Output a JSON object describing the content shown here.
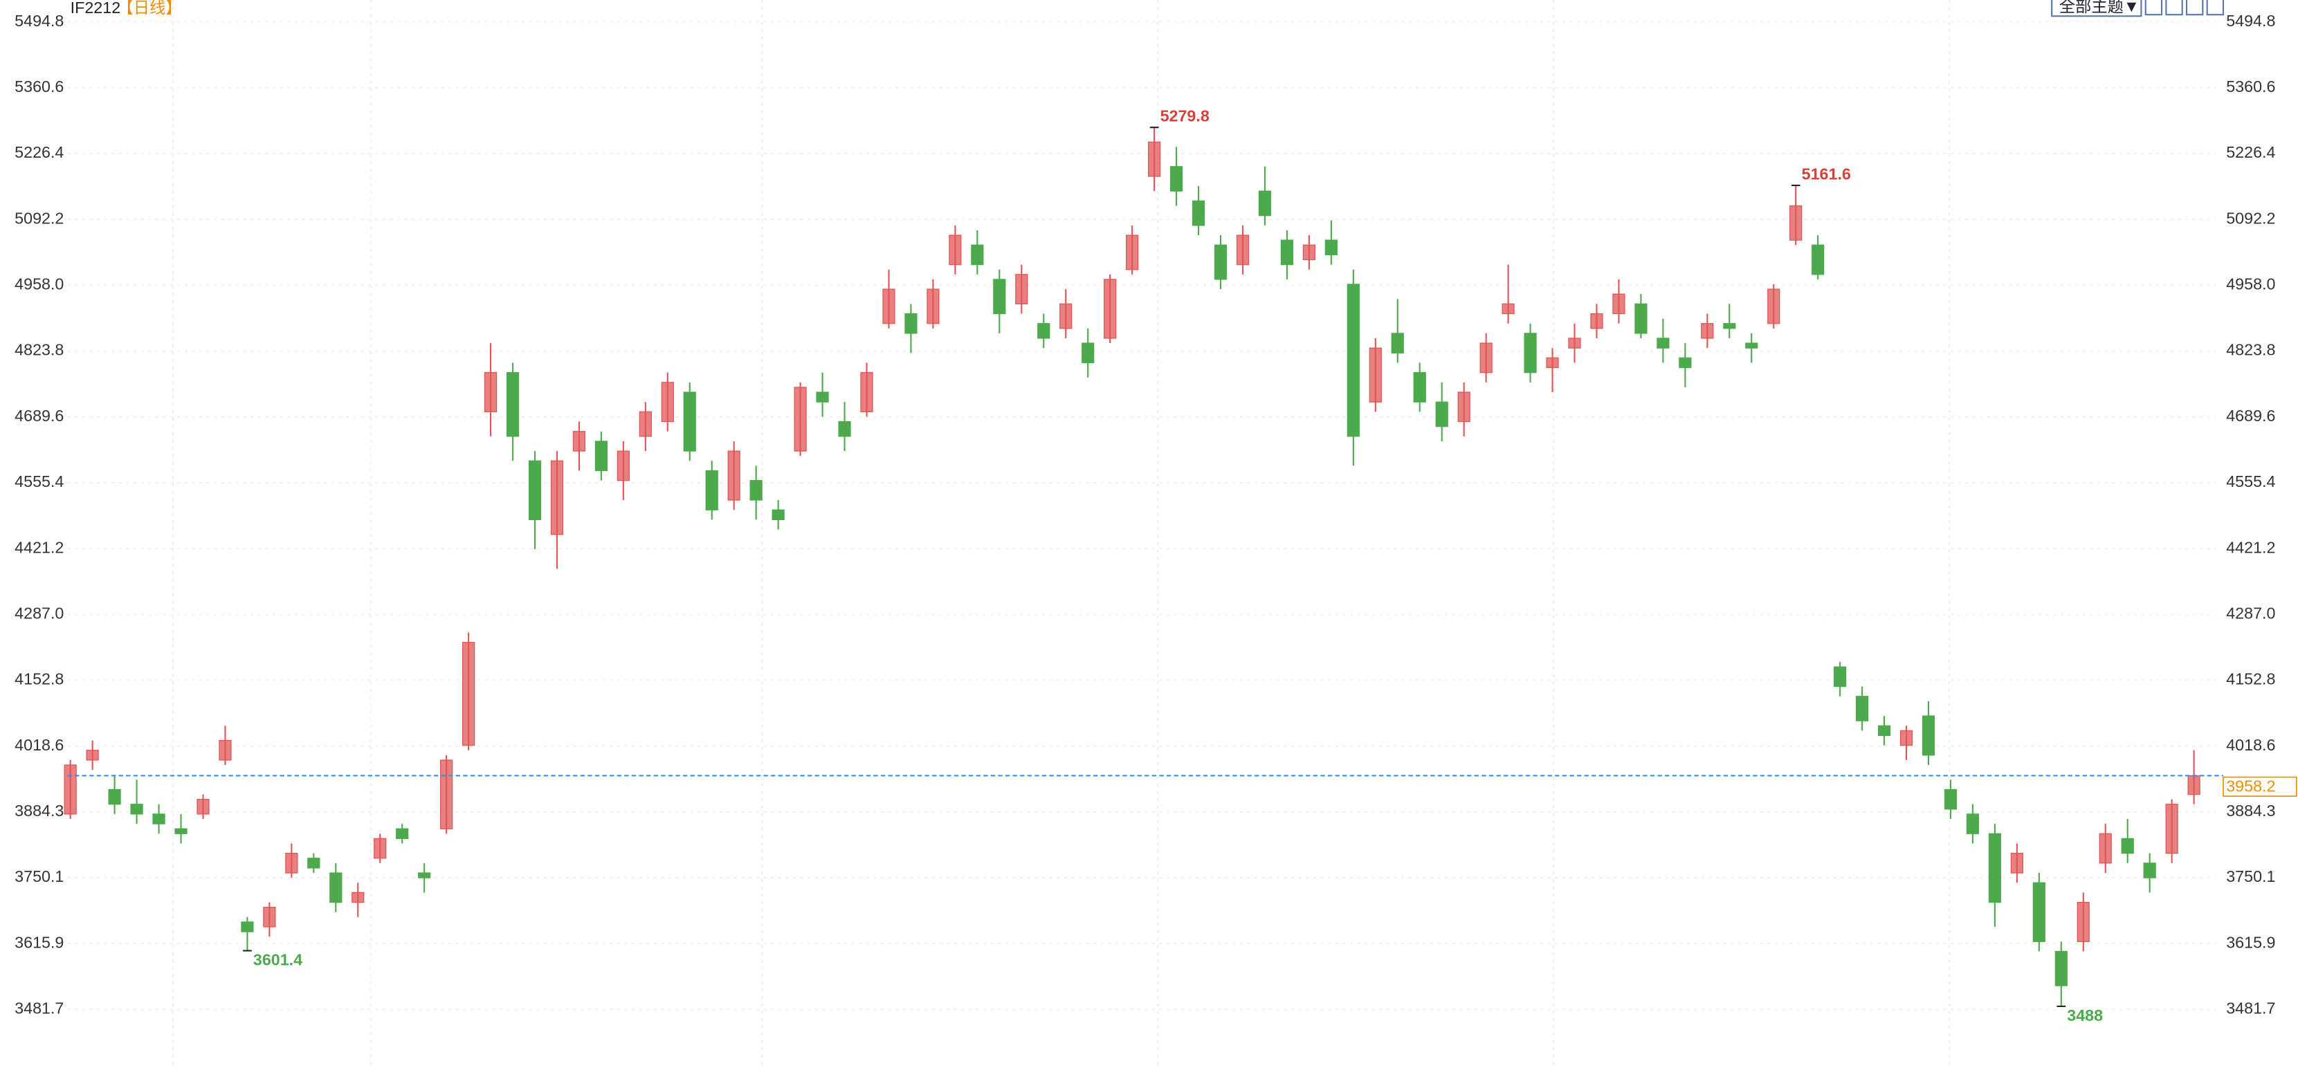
{
  "chart_data": {
    "type": "candlestick",
    "title": "IF2212",
    "period": "【日线】",
    "toolbar": "全部主题▼",
    "up_color": "#e05555",
    "down_color": "#4caa4c",
    "ylim": [
      3359.4,
      5539.5
    ],
    "yticks": [
      5494.8,
      5360.6,
      5226.4,
      5092.2,
      {
        "value": 4958,
        "label": "4958.0"
      },
      4823.8,
      4689.6,
      4555.4,
      4421.2,
      {
        "value": 4287,
        "label": "4287.0"
      },
      4152.8,
      4018.6,
      3884.3,
      3750.1,
      3615.9,
      3481.7
    ],
    "grid": true,
    "open": [
      3880,
      3990,
      3930,
      3900,
      3880,
      3850,
      3880,
      3990,
      3660,
      3650,
      3760,
      3790,
      3760,
      3700,
      3790,
      3850,
      3760,
      3850,
      4020,
      4700,
      4780,
      4600,
      4450,
      4620,
      4640,
      4560,
      4650,
      4680,
      4740,
      4580,
      4520,
      4560,
      4500,
      4620,
      4740,
      4680,
      4700,
      4880,
      4900,
      4880,
      5000,
      5040,
      4970,
      4920,
      4880,
      4870,
      4840,
      4850,
      4990,
      5180,
      5200,
      5130,
      5040,
      5000,
      5150,
      5050,
      5010,
      5050,
      4960,
      4720,
      4860,
      4780,
      4720,
      4680,
      4780,
      4900,
      4860,
      4790,
      4830,
      4870,
      4900,
      4920,
      4850,
      4810,
      4850,
      4880,
      4840,
      4880,
      5050,
      5040,
      4180,
      4120,
      4060,
      4020,
      4080,
      3930,
      3880,
      3840,
      3760,
      3740,
      3600,
      3620,
      3780,
      3830,
      3780,
      3800,
      3920
    ],
    "high": [
      3990,
      4030,
      3960,
      3950,
      3900,
      3880,
      3920,
      4060,
      3670,
      3700,
      3820,
      3800,
      3780,
      3740,
      3840,
      3860,
      3780,
      4000,
      4250,
      4840,
      4800,
      4620,
      4620,
      4680,
      4660,
      4640,
      4720,
      4780,
      4760,
      4600,
      4640,
      4590,
      4520,
      4760,
      4780,
      4720,
      4800,
      4990,
      4920,
      4970,
      5080,
      5070,
      4990,
      5000,
      4900,
      4950,
      4870,
      4980,
      5080,
      5279.8,
      5240,
      5160,
      5060,
      5080,
      5200,
      5070,
      5060,
      5090,
      4990,
      4850,
      4930,
      4800,
      4760,
      4760,
      4860,
      5000,
      4880,
      4830,
      4880,
      4920,
      4970,
      4940,
      4890,
      4840,
      4900,
      4920,
      4860,
      4960,
      5161.6,
      5060,
      4190,
      4140,
      4080,
      4060,
      4110,
      3950,
      3900,
      3860,
      3820,
      3760,
      3620,
      3720,
      3860,
      3870,
      3800,
      3910,
      4010
    ],
    "low": [
      3870,
      3970,
      3880,
      3860,
      3840,
      3820,
      3870,
      3980,
      3601.4,
      3630,
      3750,
      3760,
      3680,
      3670,
      3780,
      3820,
      3720,
      3840,
      4010,
      4650,
      4600,
      4420,
      4380,
      4580,
      4560,
      4520,
      4620,
      4660,
      4600,
      4480,
      4500,
      4480,
      4460,
      4610,
      4690,
      4620,
      4690,
      4870,
      4820,
      4870,
      4980,
      4980,
      4860,
      4900,
      4830,
      4850,
      4770,
      4840,
      4980,
      5150,
      5120,
      5060,
      4950,
      4980,
      5080,
      4970,
      4990,
      5000,
      4590,
      4700,
      4800,
      4700,
      4640,
      4650,
      4760,
      4880,
      4760,
      4740,
      4800,
      4850,
      4880,
      4850,
      4800,
      4750,
      4830,
      4850,
      4800,
      4870,
      5040,
      4970,
      4120,
      4050,
      4020,
      3990,
      3980,
      3870,
      3820,
      3650,
      3740,
      3600,
      3488,
      3600,
      3760,
      3780,
      3720,
      3780,
      3900
    ],
    "close": [
      3980,
      4010,
      3900,
      3880,
      3860,
      3840,
      3910,
      4030,
      3640,
      3690,
      3800,
      3770,
      3700,
      3720,
      3830,
      3830,
      3750,
      3990,
      4230,
      4780,
      4650,
      4480,
      4600,
      4660,
      4580,
      4620,
      4700,
      4760,
      4620,
      4500,
      4620,
      4520,
      4480,
      4750,
      4720,
      4650,
      4780,
      4950,
      4860,
      4950,
      5060,
      5000,
      4900,
      4980,
      4850,
      4920,
      4800,
      4970,
      5060,
      5250,
      5150,
      5080,
      4970,
      5060,
      5100,
      5000,
      5040,
      5020,
      4650,
      4830,
      4820,
      4720,
      4670,
      4740,
      4840,
      4920,
      4780,
      4810,
      4850,
      4900,
      4940,
      4860,
      4830,
      4790,
      4880,
      4870,
      4830,
      4950,
      5120,
      4980,
      4140,
      4070,
      4040,
      4050,
      4000,
      3890,
      3840,
      3700,
      3800,
      3620,
      3530,
      3700,
      3840,
      3800,
      3750,
      3900,
      3958.2
    ],
    "last_price": 3958.2,
    "high_labels": [
      5279.8,
      5161.6
    ],
    "low_labels": [
      3601.4,
      3488
    ]
  }
}
